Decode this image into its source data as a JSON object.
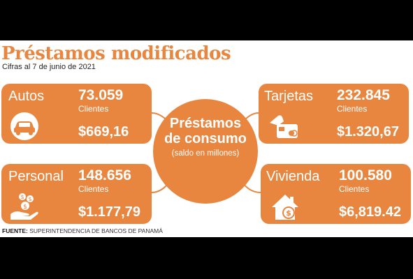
{
  "title": "Préstamos modificados",
  "subtitle": "Cifras al 7 de junio de 2021",
  "center": {
    "line1": "Préstamos",
    "line2": "de consumo",
    "line3": "(saldo en millones)"
  },
  "cards": {
    "autos": {
      "name": "Autos",
      "count": "73.059",
      "clients_label": "Clientes",
      "amount": "$669,16",
      "icon": "car-icon"
    },
    "personal": {
      "name": "Personal",
      "count": "148.656",
      "clients_label": "Clientes",
      "amount": "$1.177,79",
      "icon": "money-hand-icon"
    },
    "tarjetas": {
      "name": "Tarjetas",
      "count": "232.845",
      "clients_label": "Clientes",
      "amount": "$1.320,67",
      "icon": "credit-card-icon"
    },
    "vivienda": {
      "name": "Vivienda",
      "count": "100.580",
      "clients_label": "Clientes",
      "amount": "$6,819.42",
      "icon": "house-dollar-icon"
    }
  },
  "source": {
    "label": "FUENTE:",
    "text": "SUPERINTENDENCIA DE BANCOS DE PANAMÁ"
  },
  "colors": {
    "accent": "#e8863f",
    "background": "#ffffff",
    "frame": "#000000"
  }
}
